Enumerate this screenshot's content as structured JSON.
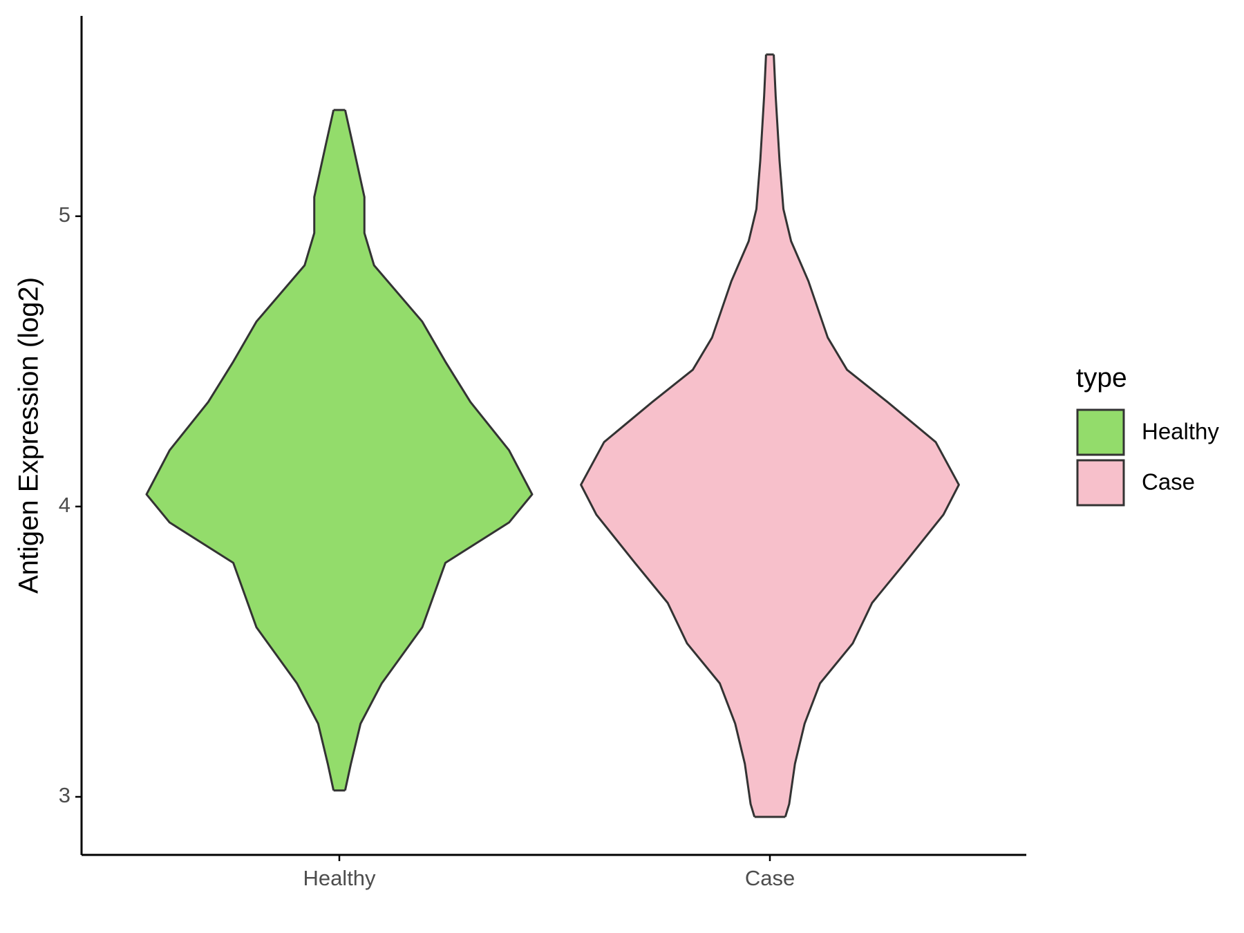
{
  "chart_data": {
    "type": "violin",
    "y_label": "Antigen Expression (log2)",
    "categories": [
      "Healthy",
      "Case"
    ],
    "legend_title": "type",
    "series": [
      {
        "name": "Healthy",
        "color": "#93dc6b",
        "y": [
          5.366,
          5.247,
          5.066,
          4.942,
          4.831,
          4.637,
          4.499,
          4.36,
          4.194,
          4.042,
          3.945,
          3.806,
          3.695,
          3.584,
          3.391,
          3.252,
          3.114,
          3.022
        ],
        "density": [
          0.03,
          0.07,
          0.13,
          0.13,
          0.18,
          0.43,
          0.55,
          0.68,
          0.88,
          1.0,
          0.88,
          0.55,
          0.49,
          0.43,
          0.22,
          0.11,
          0.06,
          0.03
        ]
      },
      {
        "name": "Case",
        "color": "#f7c0cb",
        "y": [
          5.557,
          5.413,
          5.191,
          5.025,
          4.914,
          4.776,
          4.582,
          4.471,
          4.36,
          4.222,
          4.075,
          3.972,
          3.806,
          3.668,
          3.529,
          3.391,
          3.252,
          3.114,
          2.975,
          2.931
        ],
        "density": [
          0.02,
          0.03,
          0.05,
          0.07,
          0.11,
          0.2,
          0.3,
          0.4,
          0.61,
          0.86,
          0.98,
          0.9,
          0.7,
          0.53,
          0.43,
          0.26,
          0.18,
          0.13,
          0.1,
          0.08
        ]
      }
    ],
    "ylim": [
      2.8,
      5.69
    ],
    "yticks": [
      3,
      4,
      5
    ],
    "grid": false,
    "legend_position": "right"
  }
}
